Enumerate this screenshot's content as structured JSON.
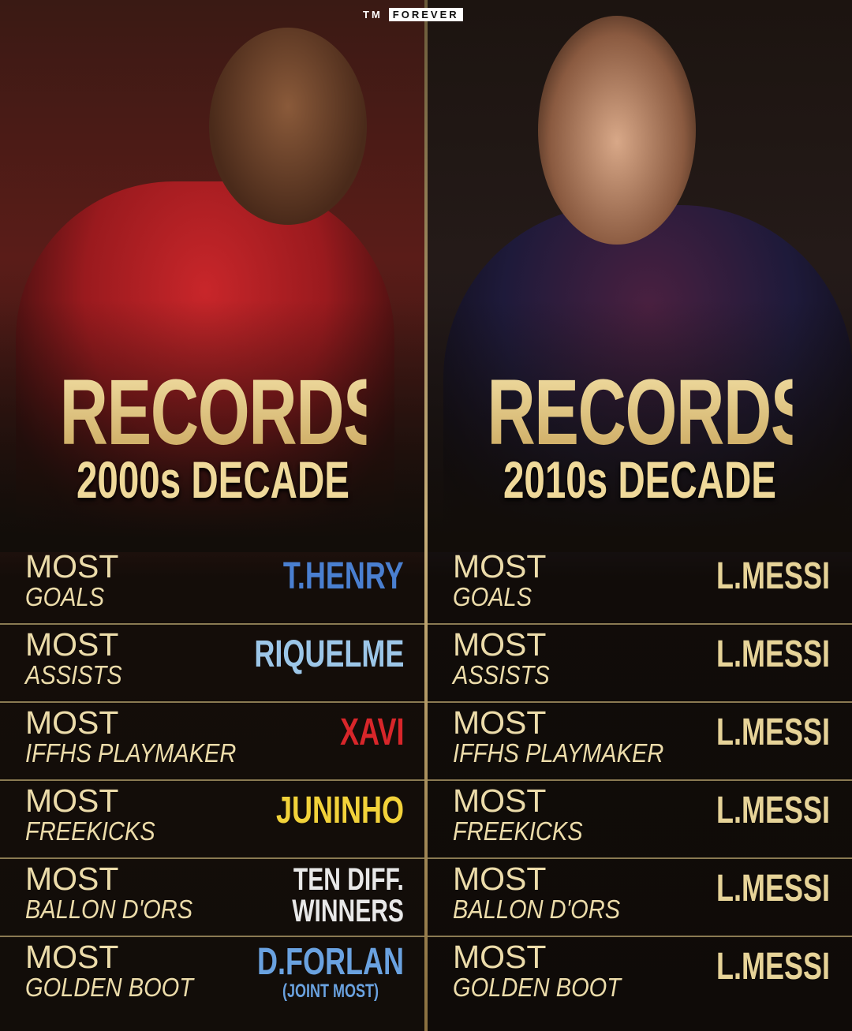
{
  "logo": {
    "tm": "TM",
    "forever": "FOREVER"
  },
  "colors": {
    "gold": "#e6d398",
    "henry": "#4a7fd0",
    "riquelme": "#9cc6e8",
    "xavi": "#d8262a",
    "juninho": "#f2d23a",
    "winners": "#e8e8e8",
    "forlan": "#6aa2e0"
  },
  "left": {
    "title": "RECORDS",
    "subtitle": "2000s DECADE",
    "rows": [
      {
        "most": "MOST",
        "category": "GOALS",
        "value": "T.HENRY"
      },
      {
        "most": "MOST",
        "category": "ASSISTS",
        "value": "RIQUELME"
      },
      {
        "most": "MOST",
        "category": "IFFHS PLAYMAKER",
        "value": "XAVI"
      },
      {
        "most": "MOST",
        "category": "FREEKICKS",
        "value": "JUNINHO"
      },
      {
        "most": "MOST",
        "category": "BALLON D'ORS",
        "value_line1": "TEN DIFF.",
        "value_line2": "WINNERS"
      },
      {
        "most": "MOST",
        "category": "GOLDEN BOOT",
        "value": "D.FORLAN",
        "note": "(JOINT MOST)"
      }
    ]
  },
  "right": {
    "title": "RECORDS",
    "subtitle": "2010s DECADE",
    "rows": [
      {
        "most": "MOST",
        "category": "GOALS",
        "value": "L.MESSI"
      },
      {
        "most": "MOST",
        "category": "ASSISTS",
        "value": "L.MESSI"
      },
      {
        "most": "MOST",
        "category": "IFFHS PLAYMAKER",
        "value": "L.MESSI"
      },
      {
        "most": "MOST",
        "category": "FREEKICKS",
        "value": "L.MESSI"
      },
      {
        "most": "MOST",
        "category": "BALLON D'ORS",
        "value": "L.MESSI"
      },
      {
        "most": "MOST",
        "category": "GOLDEN BOOT",
        "value": "L.MESSI"
      }
    ]
  }
}
